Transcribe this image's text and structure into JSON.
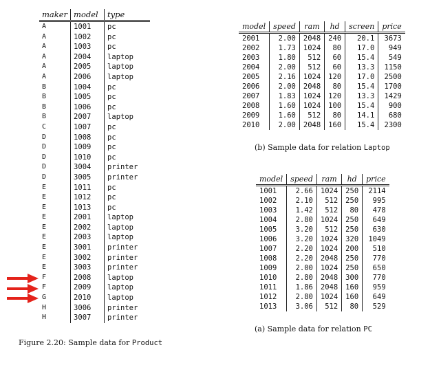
{
  "product": {
    "headers": [
      "maker",
      "model",
      "type"
    ],
    "rows": [
      [
        "A",
        "1001",
        "pc"
      ],
      [
        "A",
        "1002",
        "pc"
      ],
      [
        "A",
        "1003",
        "pc"
      ],
      [
        "A",
        "2004",
        "laptop"
      ],
      [
        "A",
        "2005",
        "laptop"
      ],
      [
        "A",
        "2006",
        "laptop"
      ],
      [
        "B",
        "1004",
        "pc"
      ],
      [
        "B",
        "1005",
        "pc"
      ],
      [
        "B",
        "1006",
        "pc"
      ],
      [
        "B",
        "2007",
        "laptop"
      ],
      [
        "C",
        "1007",
        "pc"
      ],
      [
        "D",
        "1008",
        "pc"
      ],
      [
        "D",
        "1009",
        "pc"
      ],
      [
        "D",
        "1010",
        "pc"
      ],
      [
        "D",
        "3004",
        "printer"
      ],
      [
        "D",
        "3005",
        "printer"
      ],
      [
        "E",
        "1011",
        "pc"
      ],
      [
        "E",
        "1012",
        "pc"
      ],
      [
        "E",
        "1013",
        "pc"
      ],
      [
        "E",
        "2001",
        "laptop"
      ],
      [
        "E",
        "2002",
        "laptop"
      ],
      [
        "E",
        "2003",
        "laptop"
      ],
      [
        "E",
        "3001",
        "printer"
      ],
      [
        "E",
        "3002",
        "printer"
      ],
      [
        "E",
        "3003",
        "printer"
      ],
      [
        "F",
        "2008",
        "laptop"
      ],
      [
        "F",
        "2009",
        "laptop"
      ],
      [
        "G",
        "2010",
        "laptop"
      ],
      [
        "H",
        "3006",
        "printer"
      ],
      [
        "H",
        "3007",
        "printer"
      ]
    ]
  },
  "product_caption": {
    "prefix": "Figure 2.20: Sample data for ",
    "relation": "Product"
  },
  "laptop": {
    "headers": [
      "model",
      "speed",
      "ram",
      "hd",
      "screen",
      "price"
    ],
    "rows": [
      [
        "2001",
        "2.00",
        "2048",
        "240",
        "20.1",
        "3673"
      ],
      [
        "2002",
        "1.73",
        "1024",
        "80",
        "17.0",
        "949"
      ],
      [
        "2003",
        "1.80",
        "512",
        "60",
        "15.4",
        "549"
      ],
      [
        "2004",
        "2.00",
        "512",
        "60",
        "13.3",
        "1150"
      ],
      [
        "2005",
        "2.16",
        "1024",
        "120",
        "17.0",
        "2500"
      ],
      [
        "2006",
        "2.00",
        "2048",
        "80",
        "15.4",
        "1700"
      ],
      [
        "2007",
        "1.83",
        "1024",
        "120",
        "13.3",
        "1429"
      ],
      [
        "2008",
        "1.60",
        "1024",
        "100",
        "15.4",
        "900"
      ],
      [
        "2009",
        "1.60",
        "512",
        "80",
        "14.1",
        "680"
      ],
      [
        "2010",
        "2.00",
        "2048",
        "160",
        "15.4",
        "2300"
      ]
    ]
  },
  "laptop_caption": {
    "prefix": "(b) Sample data for relation ",
    "relation": "Laptop"
  },
  "pc": {
    "headers": [
      "model",
      "speed",
      "ram",
      "hd",
      "price"
    ],
    "rows": [
      [
        "1001",
        "2.66",
        "1024",
        "250",
        "2114"
      ],
      [
        "1002",
        "2.10",
        "512",
        "250",
        "995"
      ],
      [
        "1003",
        "1.42",
        "512",
        "80",
        "478"
      ],
      [
        "1004",
        "2.80",
        "1024",
        "250",
        "649"
      ],
      [
        "1005",
        "3.20",
        "512",
        "250",
        "630"
      ],
      [
        "1006",
        "3.20",
        "1024",
        "320",
        "1049"
      ],
      [
        "1007",
        "2.20",
        "1024",
        "200",
        "510"
      ],
      [
        "1008",
        "2.20",
        "2048",
        "250",
        "770"
      ],
      [
        "1009",
        "2.00",
        "1024",
        "250",
        "650"
      ],
      [
        "1010",
        "2.80",
        "2048",
        "300",
        "770"
      ],
      [
        "1011",
        "1.86",
        "2048",
        "160",
        "959"
      ],
      [
        "1012",
        "2.80",
        "1024",
        "160",
        "649"
      ],
      [
        "1013",
        "3.06",
        "512",
        "80",
        "529"
      ]
    ]
  },
  "pc_caption": {
    "prefix": "(a) Sample data for relation ",
    "relation": "PC"
  },
  "arrows": {
    "color": "#e4231b",
    "icon": "right-arrow-icon",
    "highlighted_product_rows": [
      25,
      26,
      27
    ]
  }
}
